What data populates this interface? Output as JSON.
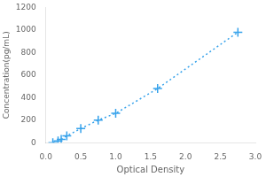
{
  "chart_data": {
    "type": "line",
    "xlabel": "Optical Density",
    "ylabel": "Concentration(pg/mL)",
    "x": [
      0.1,
      0.175,
      0.22,
      0.3,
      0.5,
      0.75,
      1.0,
      1.6,
      2.75
    ],
    "values": [
      0,
      15,
      30,
      60,
      125,
      200,
      260,
      480,
      980
    ],
    "xlim": [
      0,
      3.0
    ],
    "ylim": [
      0,
      1200
    ],
    "xticks": [
      {
        "value": 0,
        "label": "0.0"
      },
      0.5,
      {
        "value": 1,
        "label": "1.0"
      },
      1.5,
      {
        "value": 2,
        "label": "2.0"
      },
      2.5,
      {
        "value": 3,
        "label": "3.0"
      }
    ],
    "yticks": [
      0,
      200,
      400,
      600,
      800,
      1000,
      1200
    ],
    "grid": false,
    "marker": "plus",
    "line_style": "dotted"
  }
}
